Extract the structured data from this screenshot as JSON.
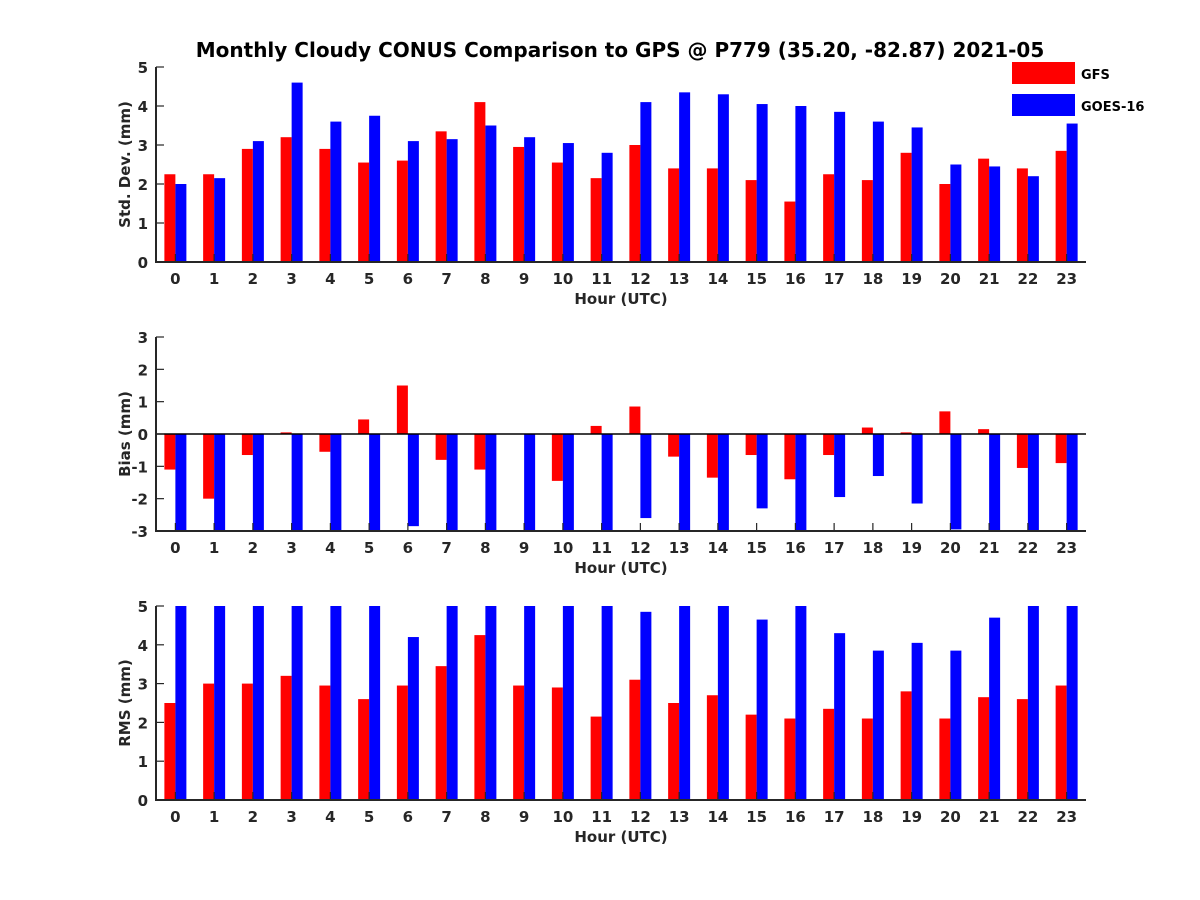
{
  "title": "Monthly Cloudy CONUS Comparison to GPS @ P779 (35.20, -82.87) 2021-05",
  "legend": {
    "placement": "top-right",
    "items": [
      {
        "name": "GFS",
        "color": "#ff0000"
      },
      {
        "name": "GOES-16",
        "color": "#0000ff"
      }
    ]
  },
  "chart_data": [
    {
      "type": "bar",
      "xlabel": "Hour (UTC)",
      "ylabel": "Std. Dev. (mm)",
      "ylim": [
        0,
        5
      ],
      "yticks": [
        0,
        1,
        2,
        3,
        4,
        5
      ],
      "categories": [
        "0",
        "1",
        "2",
        "3",
        "4",
        "5",
        "6",
        "7",
        "8",
        "9",
        "10",
        "11",
        "12",
        "13",
        "14",
        "15",
        "16",
        "17",
        "18",
        "19",
        "20",
        "21",
        "22",
        "23"
      ],
      "series": [
        {
          "name": "GFS",
          "color": "#ff0000",
          "values": [
            2.25,
            2.25,
            2.9,
            3.2,
            2.9,
            2.55,
            2.6,
            3.35,
            4.1,
            2.95,
            2.55,
            2.15,
            3.0,
            2.4,
            2.4,
            2.1,
            1.55,
            2.25,
            2.1,
            2.8,
            2.0,
            2.65,
            2.4,
            2.85
          ]
        },
        {
          "name": "GOES-16",
          "color": "#0000ff",
          "values": [
            2.0,
            2.15,
            3.1,
            4.6,
            3.6,
            3.75,
            3.1,
            3.15,
            3.5,
            3.2,
            3.05,
            2.8,
            4.1,
            4.35,
            4.3,
            4.05,
            4.0,
            3.85,
            3.6,
            3.45,
            2.5,
            2.45,
            2.2,
            3.55
          ]
        }
      ]
    },
    {
      "type": "bar",
      "xlabel": "Hour (UTC)",
      "ylabel": "Bias (mm)",
      "ylim": [
        -3,
        3
      ],
      "yticks": [
        -3,
        -2,
        -1,
        0,
        1,
        2,
        3
      ],
      "categories": [
        "0",
        "1",
        "2",
        "3",
        "4",
        "5",
        "6",
        "7",
        "8",
        "9",
        "10",
        "11",
        "12",
        "13",
        "14",
        "15",
        "16",
        "17",
        "18",
        "19",
        "20",
        "21",
        "22",
        "23"
      ],
      "series": [
        {
          "name": "GFS",
          "color": "#ff0000",
          "values": [
            -1.1,
            -2.0,
            -0.65,
            0.05,
            -0.55,
            0.45,
            1.5,
            -0.8,
            -1.1,
            0.0,
            -1.45,
            0.25,
            0.85,
            -0.7,
            -1.35,
            -0.65,
            -1.4,
            -0.65,
            0.2,
            0.05,
            0.7,
            0.15,
            -1.05,
            -0.9
          ]
        },
        {
          "name": "GOES-16",
          "color": "#0000ff",
          "values": [
            -3.0,
            -3.0,
            -3.0,
            -3.0,
            -3.0,
            -3.0,
            -2.85,
            -3.0,
            -3.0,
            -3.0,
            -3.0,
            -3.0,
            -2.6,
            -3.0,
            -3.0,
            -2.3,
            -3.0,
            -1.95,
            -1.3,
            -2.15,
            -2.95,
            -3.0,
            -3.0,
            -3.0
          ]
        }
      ]
    },
    {
      "type": "bar",
      "xlabel": "Hour (UTC)",
      "ylabel": "RMS (mm)",
      "ylim": [
        0,
        5
      ],
      "yticks": [
        0,
        1,
        2,
        3,
        4,
        5
      ],
      "categories": [
        "0",
        "1",
        "2",
        "3",
        "4",
        "5",
        "6",
        "7",
        "8",
        "9",
        "10",
        "11",
        "12",
        "13",
        "14",
        "15",
        "16",
        "17",
        "18",
        "19",
        "20",
        "21",
        "22",
        "23"
      ],
      "series": [
        {
          "name": "GFS",
          "color": "#ff0000",
          "values": [
            2.5,
            3.0,
            3.0,
            3.2,
            2.95,
            2.6,
            2.95,
            3.45,
            4.25,
            2.95,
            2.9,
            2.15,
            3.1,
            2.5,
            2.7,
            2.2,
            2.1,
            2.35,
            2.1,
            2.8,
            2.1,
            2.65,
            2.6,
            2.95
          ]
        },
        {
          "name": "GOES-16",
          "color": "#0000ff",
          "values": [
            5.0,
            5.0,
            5.0,
            5.0,
            5.0,
            5.0,
            4.2,
            5.0,
            5.0,
            5.0,
            5.0,
            5.0,
            4.85,
            5.0,
            5.0,
            4.65,
            5.0,
            4.3,
            3.85,
            4.05,
            3.85,
            4.7,
            5.0,
            5.0
          ]
        }
      ]
    }
  ]
}
